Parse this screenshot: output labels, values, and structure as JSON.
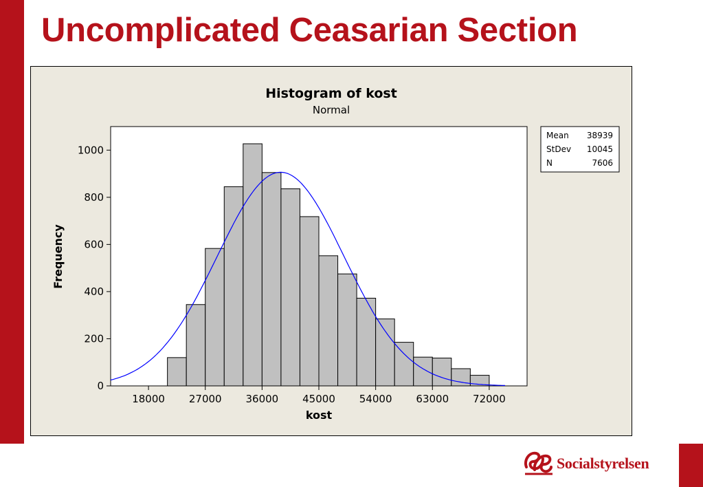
{
  "slide": {
    "title": "Uncomplicated Ceasarian Section"
  },
  "logo": {
    "text": "Socialstyrelsen"
  },
  "colors": {
    "accent": "#b5121b",
    "bars": "#c0c0c0",
    "fit_curve": "#0000ff",
    "frame_bg": "#ece9df"
  },
  "chart_data": {
    "type": "bar",
    "title": "Histogram of kost",
    "subtitle": "Normal",
    "xlabel": "kost",
    "ylabel": "Frequency",
    "bin_width": 3000,
    "bin_edges": [
      21000,
      24000,
      27000,
      30000,
      33000,
      36000,
      39000,
      42000,
      45000,
      48000,
      51000,
      54000,
      57000,
      60000,
      63000,
      66000,
      69000,
      72000
    ],
    "values": [
      120,
      345,
      583,
      845,
      1027,
      905,
      836,
      718,
      552,
      475,
      372,
      284,
      185,
      122,
      118,
      73,
      45
    ],
    "xlim": [
      12000,
      78000
    ],
    "ylim": [
      0,
      1100
    ],
    "xticks": [
      18000,
      27000,
      36000,
      45000,
      54000,
      63000,
      72000
    ],
    "yticks": [
      0,
      200,
      400,
      600,
      800,
      1000
    ],
    "legend_placement": "top-right",
    "grid": false,
    "fit": {
      "distribution": "Normal",
      "mean": 38939,
      "stdev": 10045,
      "n": 7606
    },
    "stats": [
      {
        "label": "Mean",
        "value": "38939"
      },
      {
        "label": "StDev",
        "value": "10045"
      },
      {
        "label": "N",
        "value": "7606"
      }
    ]
  }
}
